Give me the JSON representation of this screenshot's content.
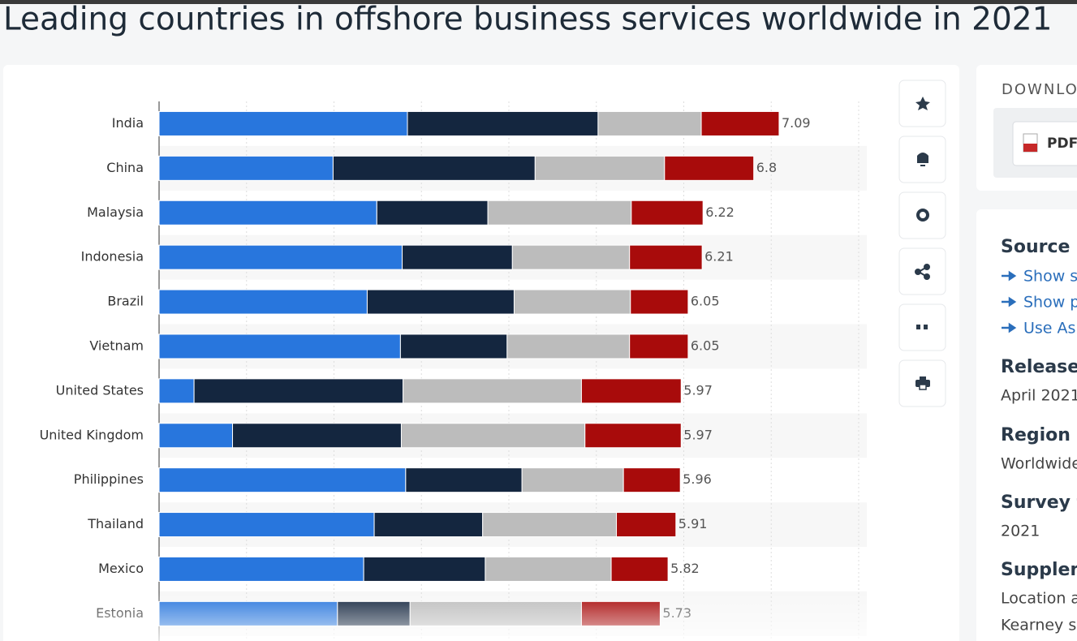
{
  "header": {
    "title": "Leading countries in offshore business services worldwide in 2021"
  },
  "chart_data": {
    "type": "stacked-bar-horizontal",
    "categories": [
      "India",
      "China",
      "Malaysia",
      "Indonesia",
      "Brazil",
      "Vietnam",
      "United States",
      "United Kingdom",
      "Philippines",
      "Thailand",
      "Mexico",
      "Estonia"
    ],
    "series": [
      {
        "color": "#2876dd",
        "values": [
          2.84,
          1.99,
          2.49,
          2.78,
          2.38,
          2.76,
          0.4,
          0.84,
          2.82,
          2.46,
          2.34,
          2.04
        ]
      },
      {
        "color": "#14263f",
        "values": [
          2.18,
          2.31,
          1.27,
          1.26,
          1.68,
          1.22,
          2.39,
          1.93,
          1.33,
          1.24,
          1.39,
          0.83
        ]
      },
      {
        "color": "#bcbcbc",
        "values": [
          1.18,
          1.48,
          1.64,
          1.34,
          1.33,
          1.4,
          2.04,
          2.1,
          1.16,
          1.53,
          1.44,
          1.96
        ]
      },
      {
        "color": "#a80b0b",
        "values": [
          0.89,
          1.02,
          0.82,
          0.83,
          0.66,
          0.67,
          1.14,
          1.1,
          0.65,
          0.68,
          0.65,
          0.9
        ]
      }
    ],
    "totals": [
      7.09,
      6.8,
      6.22,
      6.21,
      6.05,
      6.05,
      5.97,
      5.97,
      5.96,
      5.91,
      5.82,
      5.73
    ],
    "xlim": [
      0,
      8
    ],
    "xticks": [
      0,
      1,
      2,
      3,
      4,
      5,
      6,
      7,
      8
    ],
    "grid": true
  },
  "sidebar": {
    "download": "DOWNLO",
    "pdf": "PDF",
    "source": "Source",
    "links": [
      "Show s",
      "Show p",
      "Use Ask"
    ],
    "release_label": "Release",
    "release_value": "April 2021",
    "region_label": "Region",
    "region_value": "Worldwide",
    "survey_label": "Survey t",
    "survey_value": "2021",
    "supplement_label": "Supplem",
    "supplement_lines": [
      "Location a",
      "Kearney s"
    ]
  }
}
